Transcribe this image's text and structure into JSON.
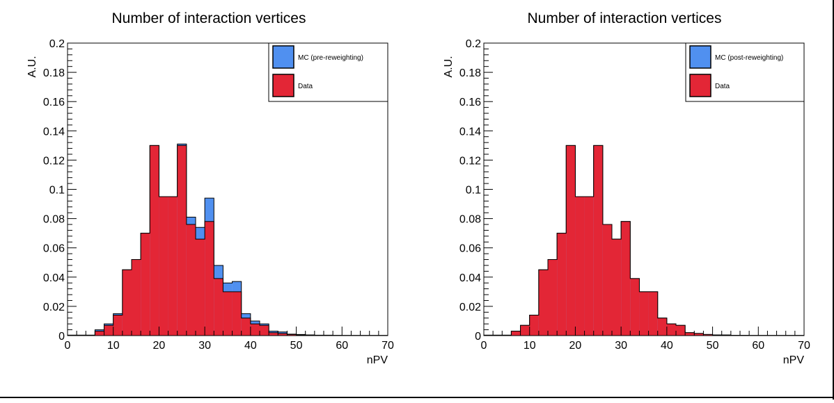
{
  "chart_data": [
    {
      "type": "histogram",
      "title": "Number of interaction vertices",
      "xlabel": "nPV",
      "ylabel": "A.U.",
      "xlim": [
        0,
        70
      ],
      "ylim": [
        0,
        0.2
      ],
      "bin_width": 2,
      "bin_edges_start": 0,
      "x_ticks": [
        "0",
        "10",
        "20",
        "30",
        "40",
        "50",
        "60",
        "70"
      ],
      "y_ticks": [
        "0",
        "0.02",
        "0.04",
        "0.06",
        "0.08",
        "0.1",
        "0.12",
        "0.14",
        "0.16",
        "0.18",
        "0.2"
      ],
      "legend_position": "top-right",
      "series": [
        {
          "name": "MC (pre-reweighting)",
          "color": "#5090f0",
          "values": [
            0.0003,
            0.0003,
            0.0003,
            0.004,
            0.008,
            0.015,
            0.045,
            0.052,
            0.07,
            0.13,
            0.095,
            0.095,
            0.131,
            0.081,
            0.074,
            0.094,
            0.048,
            0.036,
            0.037,
            0.015,
            0.01,
            0.008,
            0.003,
            0.0025,
            0.001,
            0.0008,
            0.0005,
            0.0003,
            0.0003,
            0.0002,
            0.0001,
            0.0001,
            0.0001,
            0.0001,
            0.0001
          ]
        },
        {
          "name": "Data",
          "color": "#e32636",
          "values": [
            0.0003,
            0.0003,
            0.0003,
            0.003,
            0.007,
            0.014,
            0.045,
            0.052,
            0.07,
            0.13,
            0.095,
            0.095,
            0.13,
            0.076,
            0.066,
            0.078,
            0.039,
            0.03,
            0.03,
            0.012,
            0.008,
            0.007,
            0.002,
            0.0015,
            0.0008,
            0.0005,
            0.0004,
            0.0002,
            0.0002,
            0.0001,
            0.0001,
            0.0001,
            0.0001,
            0.0001,
            0.0001
          ]
        }
      ]
    },
    {
      "type": "histogram",
      "title": "Number of interaction vertices",
      "xlabel": "nPV",
      "ylabel": "A.U.",
      "xlim": [
        0,
        70
      ],
      "ylim": [
        0,
        0.2
      ],
      "bin_width": 2,
      "bin_edges_start": 0,
      "x_ticks": [
        "0",
        "10",
        "20",
        "30",
        "40",
        "50",
        "60",
        "70"
      ],
      "y_ticks": [
        "0",
        "0.02",
        "0.04",
        "0.06",
        "0.08",
        "0.1",
        "0.12",
        "0.14",
        "0.16",
        "0.18",
        "0.2"
      ],
      "legend_position": "top-right",
      "series": [
        {
          "name": "MC (post-reweighting)",
          "color": "#5090f0",
          "values": [
            0.0003,
            0.0003,
            0.0003,
            0.003,
            0.007,
            0.014,
            0.045,
            0.052,
            0.07,
            0.13,
            0.095,
            0.095,
            0.13,
            0.076,
            0.066,
            0.078,
            0.039,
            0.03,
            0.03,
            0.012,
            0.008,
            0.007,
            0.002,
            0.0015,
            0.0008,
            0.0005,
            0.0004,
            0.0002,
            0.0002,
            0.0001,
            0.0001,
            0.0001,
            0.0001,
            0.0001,
            0.0001
          ]
        },
        {
          "name": "Data",
          "color": "#e32636",
          "values": [
            0.0003,
            0.0003,
            0.0003,
            0.003,
            0.007,
            0.014,
            0.045,
            0.052,
            0.07,
            0.13,
            0.095,
            0.095,
            0.13,
            0.076,
            0.066,
            0.078,
            0.039,
            0.03,
            0.03,
            0.012,
            0.008,
            0.007,
            0.002,
            0.0015,
            0.0008,
            0.0005,
            0.0004,
            0.0002,
            0.0002,
            0.0001,
            0.0001,
            0.0001,
            0.0001,
            0.0001,
            0.0001
          ]
        }
      ]
    }
  ]
}
